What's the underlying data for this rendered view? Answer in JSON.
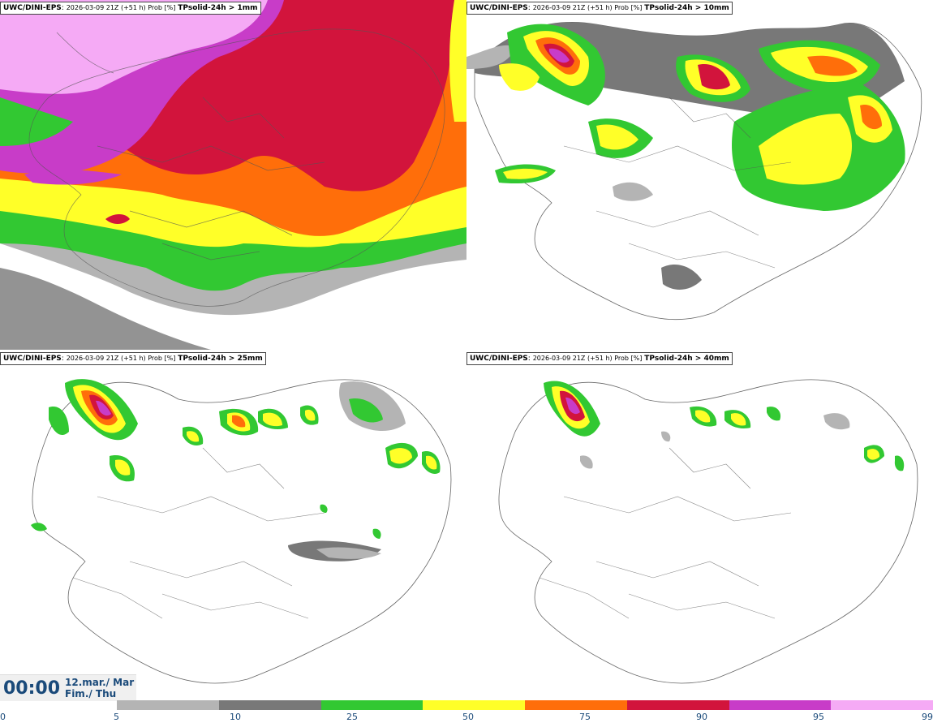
{
  "panels": [
    {
      "source": "UWC/DINI-EPS",
      "meta": "2026-03-09 21Z (+51 h) Prob [%]",
      "variable": "TPsolid-24h > 1mm"
    },
    {
      "source": "UWC/DINI-EPS",
      "meta": "2026-03-09 21Z (+51 h) Prob [%]",
      "variable": "TPsolid-24h > 10mm"
    },
    {
      "source": "UWC/DINI-EPS",
      "meta": "2026-03-09 21Z (+51 h) Prob [%]",
      "variable": "TPsolid-24h > 25mm"
    },
    {
      "source": "UWC/DINI-EPS",
      "meta": "2026-03-09 21Z (+51 h) Prob [%]",
      "variable": "TPsolid-24h > 40mm"
    }
  ],
  "time": {
    "hhmm": "00:00",
    "date_line1": "12.mar./ Mar",
    "date_line2": "Fim./ Thu"
  },
  "colorbar": {
    "labels": [
      "0",
      "5",
      "10",
      "25",
      "50",
      "75",
      "90",
      "95",
      "99"
    ],
    "colors": [
      "#b4b4b4",
      "#787878",
      "#32c832",
      "#ffff28",
      "#ff6e0a",
      "#d2143c",
      "#c83cc8",
      "#f5aaf5"
    ]
  }
}
